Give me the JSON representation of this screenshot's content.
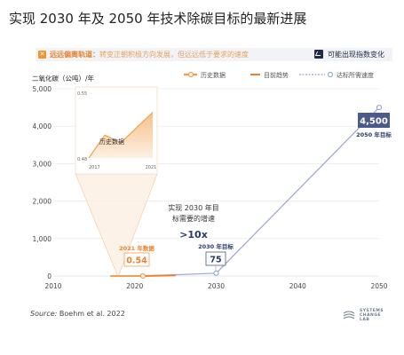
{
  "title": "实现 2030 年及 2050 年技术除碳目标的最新进展",
  "banner": {
    "warning_title": "远远偏离轨道：",
    "warning_text": "转变正朝积极方向发展，但远远低于要求的速度",
    "warning_icon": "x-icon",
    "trend_label": "可能出现指数变化",
    "trend_icon": "trend-icon"
  },
  "chart_data": {
    "type": "line",
    "ylabel": "二氧化碳（公吨）/年",
    "xlim": [
      2010,
      2050
    ],
    "ylim": [
      0,
      5000
    ],
    "xticks": [
      2010,
      2020,
      2030,
      2040,
      2050
    ],
    "yticks": [
      0,
      1000,
      2000,
      3000,
      4000,
      5000
    ],
    "ytick_labels": [
      "0",
      "1,000",
      "2,000",
      "3,000",
      "4,000",
      "5,000"
    ],
    "legend": {
      "position": "top",
      "items": [
        "历史数据",
        "目前趋势",
        "达标所需速度"
      ]
    },
    "series": [
      {
        "name": "历史数据",
        "x": [
          2017,
          2018,
          2019,
          2020,
          2021
        ],
        "y": [
          0.48,
          0.51,
          0.5,
          0.52,
          0.54
        ],
        "color": "#f0a050"
      },
      {
        "name": "目前趋势",
        "x": [
          2021,
          2025
        ],
        "y": [
          0.54,
          20
        ],
        "color": "#e9812d"
      },
      {
        "name": "达标所需速度",
        "x": [
          2021,
          2030,
          2050
        ],
        "y": [
          0.54,
          75,
          4500
        ],
        "color": "#9aa6cf"
      }
    ],
    "inset": {
      "title": "历史数据",
      "ylim": [
        0.48,
        0.55
      ],
      "ytick_labels": [
        "0.55",
        "0.48"
      ],
      "xtick_labels": [
        "2017",
        "2021"
      ]
    },
    "annotations": {
      "point_2021": {
        "label": "2021 年数据",
        "value": "0.54"
      },
      "point_2030": {
        "label": "2030 年目标",
        "value": "75"
      },
      "point_2050": {
        "label": "2050 年目标",
        "value": "4,500"
      },
      "required_rate_text_line1": "实现 2030 年目",
      "required_rate_text_line2": "标需要的增速",
      "required_rate_multiplier": ">10x"
    },
    "colors": {
      "history": "#f0a050",
      "trend": "#e9812d",
      "required": "#9aa6cf",
      "target_box": "#4a5a8a",
      "axis_text": "#444444"
    }
  },
  "source": {
    "label": "Source:",
    "text": "Boehm et al. 2022"
  },
  "logo": {
    "text_line1": "SYSTEMS",
    "text_line2": "CHANGE",
    "text_line3": "LAB"
  }
}
